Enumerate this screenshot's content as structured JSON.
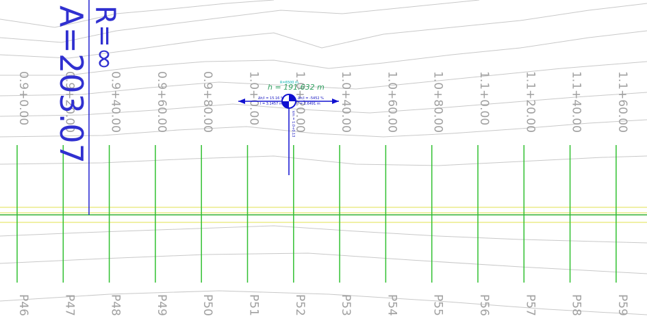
{
  "stations": [
    "0.9+0.00",
    "0.9+20.00",
    "0.9+40.00",
    "0.9+60.00",
    "0.9+80.00",
    "1.0+0.00",
    "1.0+20.00",
    "1.0+40.00",
    "1.0+60.00",
    "1.0+80.00",
    "1.1+0.00",
    "1.1+20.00",
    "1.1+40.00",
    "1.1+60.00"
  ],
  "profiles": [
    "P46",
    "P47",
    "P48",
    "P49",
    "P50",
    "P51",
    "P52",
    "P53",
    "P54",
    "P55",
    "P56",
    "P57",
    "P58",
    "P59"
  ],
  "curve": {
    "radius": "R=∞",
    "parameter": "A=203.07"
  },
  "vertex": {
    "height": "h = 191.632 m",
    "radius": "R=6500 m",
    "grade_left": "Δh/l = 15.16 %",
    "length_left": "l = 3.1457 m",
    "grade_right": "Δh/l = -5452 %",
    "length_right": "l = 2.6491 m",
    "chainage": "km = 1.0+0.13"
  }
}
